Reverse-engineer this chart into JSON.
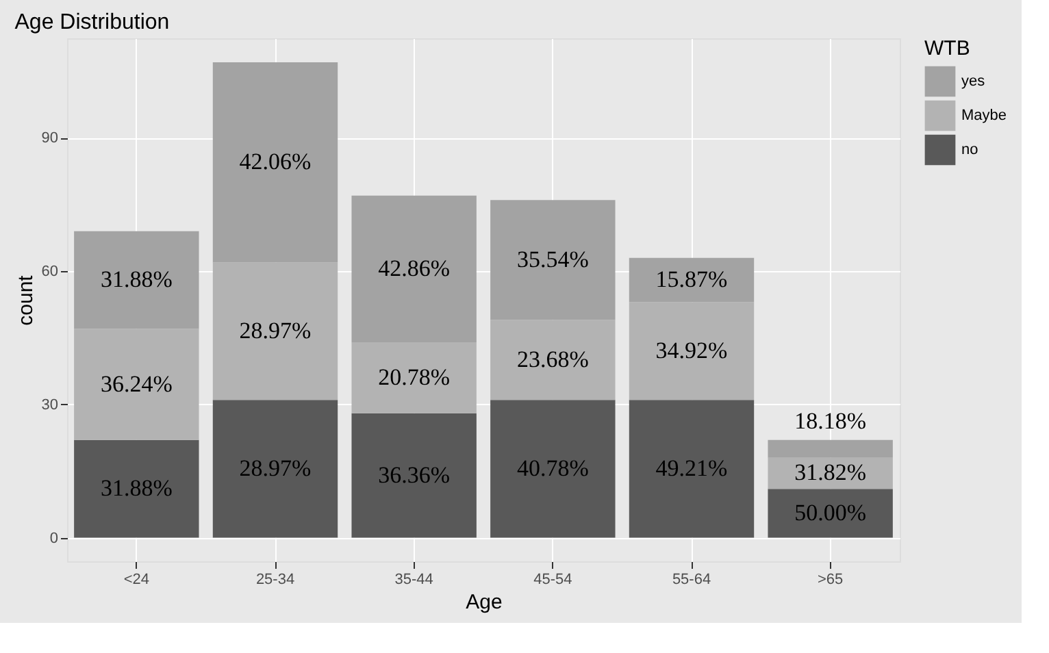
{
  "chart_data": {
    "type": "bar",
    "title": "Age Distribution",
    "xlabel": "Age",
    "ylabel": "count",
    "legend_title": "WTB",
    "categories": [
      "<24",
      "25-34",
      "35-44",
      "45-54",
      "55-64",
      ">65"
    ],
    "stacked": true,
    "series": [
      {
        "name": "no",
        "color": "#595959",
        "values": [
          22,
          31,
          28,
          31,
          31,
          11
        ]
      },
      {
        "name": "Maybe",
        "color": "#b3b3b3",
        "values": [
          25,
          31,
          16,
          18,
          22,
          7
        ]
      },
      {
        "name": "yes",
        "color": "#a3a3a3",
        "values": [
          22,
          45,
          33,
          27,
          10,
          4
        ]
      }
    ],
    "annotations": [
      "31.88%",
      "36.24%",
      "31.88%",
      "28.97%",
      "28.97%",
      "42.06%",
      "36.36%",
      "20.78%",
      "42.86%",
      "40.78%",
      "23.68%",
      "35.54%",
      "49.21%",
      "34.92%",
      "15.87%",
      "50.00%",
      "31.82%",
      "18.18%"
    ],
    "ylim": [
      -5.3,
      112.4
    ],
    "yticks": [
      0,
      30,
      60,
      90
    ],
    "grid": true,
    "legend": "right"
  }
}
